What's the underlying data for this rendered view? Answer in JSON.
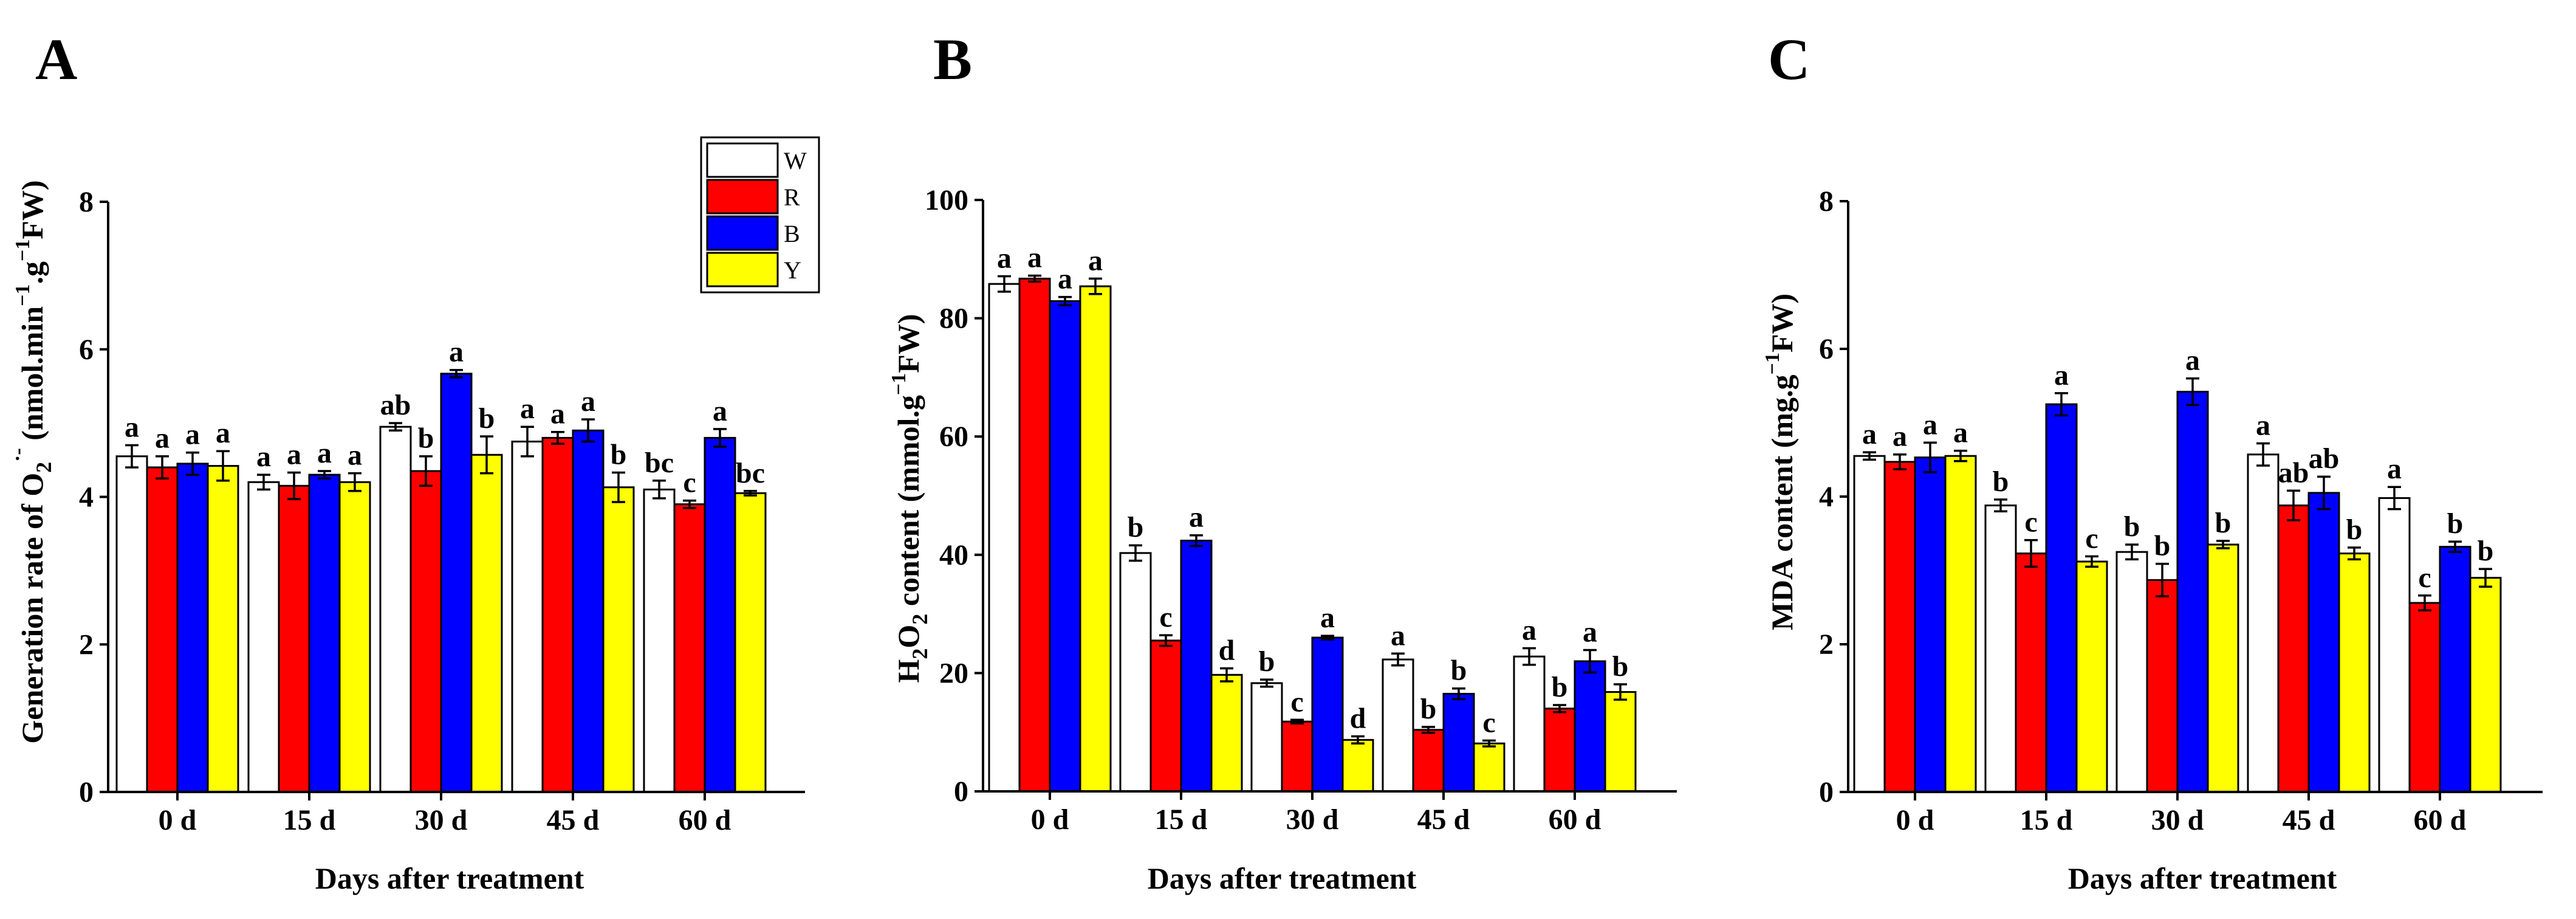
{
  "figure": {
    "xlabel": "Days after treatment",
    "legend": {
      "placement": "top-right of panel A",
      "entries": [
        {
          "label": "W",
          "color": "#ffffff"
        },
        {
          "label": "R",
          "color": "#ff0000"
        },
        {
          "label": "B",
          "color": "#0000ff"
        },
        {
          "label": "Y",
          "color": "#ffff00"
        }
      ]
    }
  },
  "chart_data": [
    {
      "type": "bar",
      "panel": "A",
      "ylabel_main": "Generation rate of O",
      "ylabel_sub": "2",
      "ylabel_sup": "·-",
      "ylabel_unit_pre": " (nmol.min",
      "ylabel_unit_sup1": "−1",
      "ylabel_unit_mid": ".g",
      "ylabel_unit_sup2": "−1",
      "ylabel_unit_post": "FW)",
      "xlabel": "Days after treatment",
      "categories": [
        "0 d",
        "15 d",
        "30 d",
        "45 d",
        "60 d"
      ],
      "ylim": [
        0,
        8
      ],
      "yticks": [
        "0",
        "2",
        "4",
        "6",
        "8"
      ],
      "series": [
        {
          "name": "W",
          "values": [
            4.55,
            4.2,
            4.95,
            4.75,
            4.1
          ],
          "errors": [
            0.15,
            0.1,
            0.05,
            0.2,
            0.12
          ],
          "labels": [
            "a",
            "a",
            "ab",
            "a",
            "bc"
          ]
        },
        {
          "name": "R",
          "values": [
            4.4,
            4.15,
            4.35,
            4.8,
            3.9
          ],
          "errors": [
            0.15,
            0.18,
            0.2,
            0.08,
            0.05
          ],
          "labels": [
            "a",
            "a",
            "b",
            "a",
            "c"
          ]
        },
        {
          "name": "B",
          "values": [
            4.45,
            4.3,
            5.67,
            4.9,
            4.8
          ],
          "errors": [
            0.15,
            0.05,
            0.05,
            0.15,
            0.12
          ],
          "labels": [
            "a",
            "a",
            "a",
            "a",
            "a"
          ]
        },
        {
          "name": "Y",
          "values": [
            4.42,
            4.2,
            4.57,
            4.13,
            4.05
          ],
          "errors": [
            0.2,
            0.12,
            0.25,
            0.2,
            0.03
          ],
          "labels": [
            "a",
            "a",
            "b",
            "b",
            "bc"
          ]
        }
      ]
    },
    {
      "type": "bar",
      "panel": "B",
      "ylabel_main": "H",
      "ylabel_sub": "2",
      "ylabel_mid": "O",
      "ylabel_sub2": "2",
      "ylabel_unit_pre": " content (mmol.g",
      "ylabel_unit_sup": "−1",
      "ylabel_unit_post": "FW)",
      "xlabel": "Days after treatment",
      "categories": [
        "0 d",
        "15 d",
        "30 d",
        "45 d",
        "60 d"
      ],
      "ylim": [
        0,
        100
      ],
      "yticks": [
        "0",
        "20",
        "40",
        "60",
        "80",
        "100"
      ],
      "series": [
        {
          "name": "W",
          "values": [
            85.8,
            40.3,
            18.3,
            22.3,
            22.8
          ],
          "errors": [
            1.3,
            1.3,
            0.6,
            1.0,
            1.4
          ],
          "labels": [
            "a",
            "b",
            "b",
            "a",
            "a"
          ]
        },
        {
          "name": "R",
          "values": [
            86.7,
            25.5,
            11.8,
            10.4,
            14.0
          ],
          "errors": [
            0.5,
            0.9,
            0.3,
            0.5,
            0.6
          ],
          "labels": [
            "a",
            "c",
            "c",
            "b",
            "b"
          ]
        },
        {
          "name": "B",
          "values": [
            82.9,
            42.4,
            26.0,
            16.5,
            22.0
          ],
          "errors": [
            0.7,
            0.9,
            0.3,
            0.9,
            1.9
          ],
          "labels": [
            "a",
            "a",
            "a",
            "b",
            "a"
          ]
        },
        {
          "name": "Y",
          "values": [
            85.4,
            19.7,
            8.7,
            8.1,
            16.8
          ],
          "errors": [
            1.3,
            1.1,
            0.6,
            0.5,
            1.3
          ],
          "labels": [
            "a",
            "d",
            "d",
            "c",
            "b"
          ]
        }
      ]
    },
    {
      "type": "bar",
      "panel": "C",
      "ylabel_main": "MDA content (mg.g",
      "ylabel_unit_sup": "−1",
      "ylabel_unit_post": "FW)",
      "xlabel": "Days after treatment",
      "categories": [
        "0 d",
        "15 d",
        "30 d",
        "45 d",
        "60 d"
      ],
      "ylim": [
        0,
        8
      ],
      "yticks": [
        "0",
        "2",
        "4",
        "6",
        "8"
      ],
      "series": [
        {
          "name": "W",
          "values": [
            4.55,
            3.88,
            3.25,
            4.57,
            3.98
          ],
          "errors": [
            0.05,
            0.08,
            0.1,
            0.15,
            0.15
          ],
          "labels": [
            "a",
            "b",
            "b",
            "a",
            "a"
          ]
        },
        {
          "name": "R",
          "values": [
            4.47,
            3.23,
            2.87,
            3.88,
            2.56
          ],
          "errors": [
            0.1,
            0.18,
            0.22,
            0.2,
            0.1
          ],
          "labels": [
            "a",
            "c",
            "b",
            "ab",
            "c"
          ]
        },
        {
          "name": "B",
          "values": [
            4.53,
            5.25,
            5.42,
            4.05,
            3.32
          ],
          "errors": [
            0.2,
            0.15,
            0.18,
            0.22,
            0.07
          ],
          "labels": [
            "a",
            "a",
            "a",
            "ab",
            "b"
          ]
        },
        {
          "name": "Y",
          "values": [
            4.55,
            3.12,
            3.35,
            3.23,
            2.9
          ],
          "errors": [
            0.07,
            0.07,
            0.05,
            0.08,
            0.12
          ],
          "labels": [
            "a",
            "c",
            "b",
            "b",
            "b"
          ]
        }
      ]
    }
  ]
}
